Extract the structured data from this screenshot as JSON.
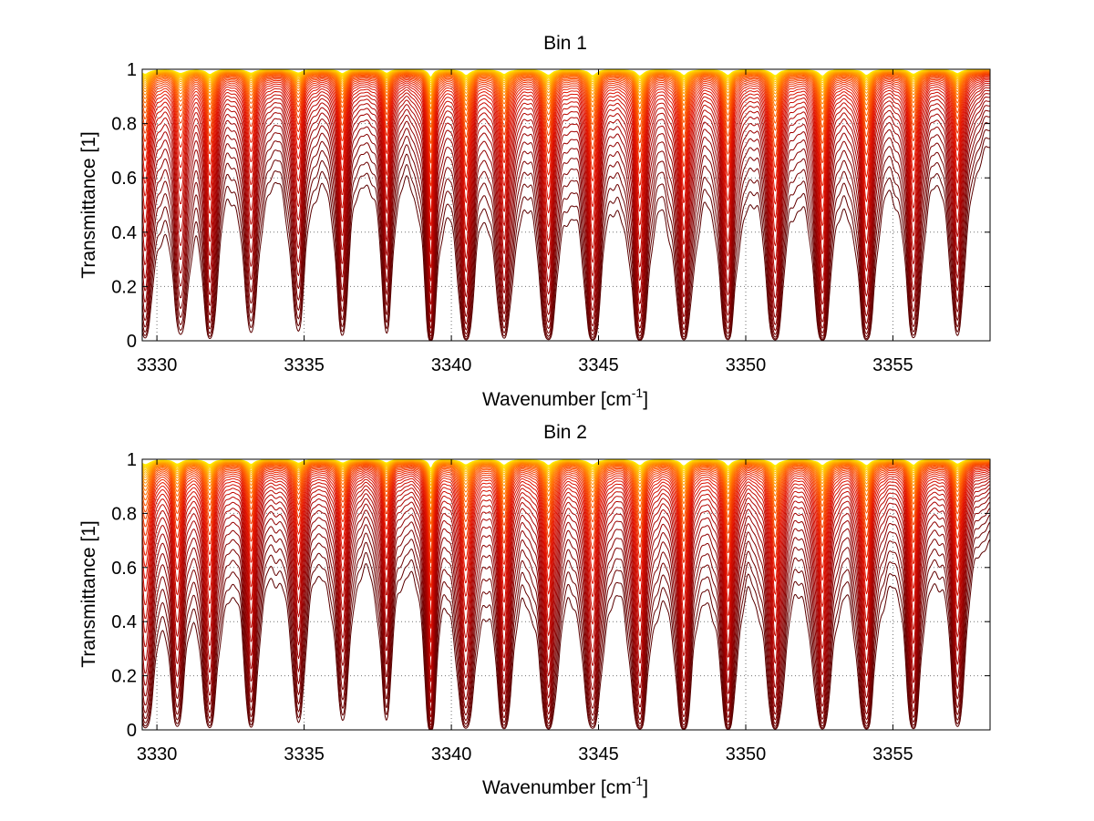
{
  "chart_data": [
    {
      "type": "line",
      "title": "Bin 1",
      "xlabel": "Wavenumber [cm",
      "xlabel_sup": "-1",
      "xlabel_end": "]",
      "ylabel": "Transmittance [1]",
      "xlim": [
        3329.5,
        3358.3
      ],
      "ylim": [
        0,
        1
      ],
      "xticks": [
        3330,
        3335,
        3340,
        3345,
        3350,
        3355
      ],
      "xtick_labels": [
        "3330",
        "3335",
        "3340",
        "3345",
        "3350",
        "3355"
      ],
      "yticks": [
        0,
        0.2,
        0.4,
        0.6,
        0.8,
        1
      ],
      "ytick_labels": [
        "0",
        "0.2",
        "0.4",
        "0.6",
        "0.8",
        "1"
      ],
      "grid": true,
      "series_count": 40,
      "colormap": [
        "#5a0000",
        "#a00000",
        "#e01000",
        "#ff5a00",
        "#ffb000",
        "#ffee00"
      ],
      "absorption_lines": [
        {
          "x": 3329.6,
          "depth": 0.5,
          "width": 0.18
        },
        {
          "x": 3330.8,
          "depth": 0.45,
          "width": 0.16
        },
        {
          "x": 3331.8,
          "depth": 0.55,
          "width": 0.14
        },
        {
          "x": 3333.2,
          "depth": 0.45,
          "width": 0.14
        },
        {
          "x": 3334.8,
          "depth": 0.4,
          "width": 0.15
        },
        {
          "x": 3336.3,
          "depth": 0.42,
          "width": 0.14
        },
        {
          "x": 3337.8,
          "depth": 0.38,
          "width": 0.13
        },
        {
          "x": 3339.3,
          "depth": 0.95,
          "width": 0.09
        },
        {
          "x": 3340.5,
          "depth": 0.65,
          "width": 0.15
        },
        {
          "x": 3341.8,
          "depth": 0.6,
          "width": 0.15
        },
        {
          "x": 3343.3,
          "depth": 0.7,
          "width": 0.15
        },
        {
          "x": 3344.8,
          "depth": 0.72,
          "width": 0.15
        },
        {
          "x": 3346.4,
          "depth": 0.75,
          "width": 0.15
        },
        {
          "x": 3347.9,
          "depth": 0.72,
          "width": 0.15
        },
        {
          "x": 3349.4,
          "depth": 0.72,
          "width": 0.14
        },
        {
          "x": 3351.0,
          "depth": 0.75,
          "width": 0.15
        },
        {
          "x": 3352.6,
          "depth": 0.75,
          "width": 0.15
        },
        {
          "x": 3354.1,
          "depth": 0.72,
          "width": 0.15
        },
        {
          "x": 3355.7,
          "depth": 0.65,
          "width": 0.14
        },
        {
          "x": 3357.2,
          "depth": 0.55,
          "width": 0.14
        }
      ]
    },
    {
      "type": "line",
      "title": "Bin 2",
      "xlabel": "Wavenumber [cm",
      "xlabel_sup": "-1",
      "xlabel_end": "]",
      "ylabel": "Transmittance [1]",
      "xlim": [
        3329.5,
        3358.3
      ],
      "ylim": [
        0,
        1
      ],
      "xticks": [
        3330,
        3335,
        3340,
        3345,
        3350,
        3355
      ],
      "xtick_labels": [
        "3330",
        "3335",
        "3340",
        "3345",
        "3350",
        "3355"
      ],
      "yticks": [
        0,
        0.2,
        0.4,
        0.6,
        0.8,
        1
      ],
      "ytick_labels": [
        "0",
        "0.2",
        "0.4",
        "0.6",
        "0.8",
        "1"
      ],
      "grid": true,
      "series_count": 40,
      "colormap": [
        "#5a0000",
        "#a00000",
        "#e01000",
        "#ff5a00",
        "#ffb000",
        "#ffee00"
      ],
      "absorption_lines": [
        {
          "x": 3329.6,
          "depth": 0.55,
          "width": 0.18
        },
        {
          "x": 3330.7,
          "depth": 0.45,
          "width": 0.16
        },
        {
          "x": 3331.8,
          "depth": 0.6,
          "width": 0.14
        },
        {
          "x": 3333.2,
          "depth": 0.5,
          "width": 0.14
        },
        {
          "x": 3334.8,
          "depth": 0.4,
          "width": 0.15
        },
        {
          "x": 3336.3,
          "depth": 0.42,
          "width": 0.14
        },
        {
          "x": 3337.8,
          "depth": 0.38,
          "width": 0.13
        },
        {
          "x": 3339.3,
          "depth": 0.92,
          "width": 0.09
        },
        {
          "x": 3340.5,
          "depth": 0.7,
          "width": 0.15
        },
        {
          "x": 3341.8,
          "depth": 0.62,
          "width": 0.15
        },
        {
          "x": 3343.3,
          "depth": 0.72,
          "width": 0.15
        },
        {
          "x": 3344.8,
          "depth": 0.72,
          "width": 0.15
        },
        {
          "x": 3346.4,
          "depth": 0.75,
          "width": 0.15
        },
        {
          "x": 3347.9,
          "depth": 0.72,
          "width": 0.15
        },
        {
          "x": 3349.4,
          "depth": 0.75,
          "width": 0.14
        },
        {
          "x": 3351.0,
          "depth": 0.78,
          "width": 0.15
        },
        {
          "x": 3352.6,
          "depth": 0.78,
          "width": 0.15
        },
        {
          "x": 3354.1,
          "depth": 0.75,
          "width": 0.15
        },
        {
          "x": 3355.7,
          "depth": 0.68,
          "width": 0.14
        },
        {
          "x": 3357.2,
          "depth": 0.58,
          "width": 0.14
        }
      ]
    }
  ]
}
